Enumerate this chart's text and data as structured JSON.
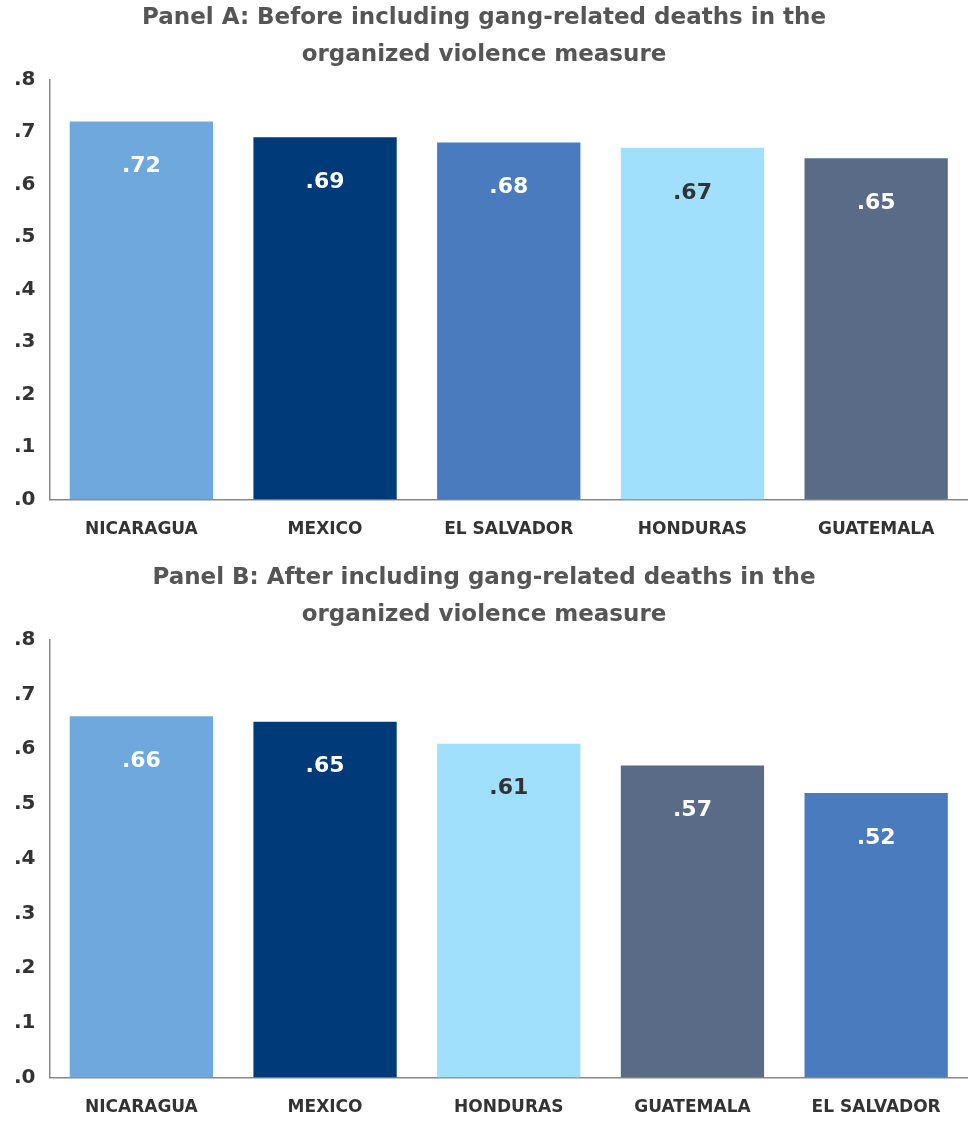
{
  "chart_data": [
    {
      "type": "bar",
      "title": "Panel A: Before including gang-related deaths in the organized violence measure",
      "categories": [
        "NICARAGUA",
        "MEXICO",
        "EL SALVADOR",
        "HONDURAS",
        "GUATEMALA"
      ],
      "values": [
        0.72,
        0.69,
        0.68,
        0.67,
        0.65
      ],
      "colors": [
        "#6fa8dc",
        "#003a78",
        "#4a7bbf",
        "#a0e0fc",
        "#596b86"
      ],
      "value_labels": [
        ".72",
        ".69",
        ".68",
        ".67",
        ".65"
      ],
      "ylim": [
        0,
        0.8
      ],
      "yticks": [
        {
          "value": 0,
          "label": ".0"
        },
        {
          "value": 0.1,
          "label": ".1"
        },
        {
          "value": 0.2,
          "label": ".2"
        },
        {
          "value": 0.3,
          "label": ".3"
        },
        {
          "value": 0.4,
          "label": ".4"
        },
        {
          "value": 0.5,
          "label": ".5"
        },
        {
          "value": 0.6,
          "label": ".6"
        },
        {
          "value": 0.7,
          "label": ".7"
        },
        {
          "value": 0.8,
          "label": ".8"
        }
      ],
      "grid": false,
      "legend": false
    },
    {
      "type": "bar",
      "title": "Panel B: After including gang-related deaths in the organized violence measure",
      "categories": [
        "NICARAGUA",
        "MEXICO",
        "HONDURAS",
        "GUATEMALA",
        "EL SALVADOR"
      ],
      "values": [
        0.66,
        0.65,
        0.61,
        0.57,
        0.52
      ],
      "colors": [
        "#6fa8dc",
        "#003a78",
        "#a0e0fc",
        "#596b86",
        "#4a7bbf"
      ],
      "value_labels": [
        ".66",
        ".65",
        ".61",
        ".57",
        ".52"
      ],
      "ylim": [
        0,
        0.8
      ],
      "yticks": [
        {
          "value": 0,
          "label": ".0"
        },
        {
          "value": 0.1,
          "label": ".1"
        },
        {
          "value": 0.2,
          "label": ".2"
        },
        {
          "value": 0.3,
          "label": ".3"
        },
        {
          "value": 0.4,
          "label": ".4"
        },
        {
          "value": 0.5,
          "label": ".5"
        },
        {
          "value": 0.6,
          "label": ".6"
        },
        {
          "value": 0.7,
          "label": ".7"
        },
        {
          "value": 0.8,
          "label": ".8"
        }
      ],
      "grid": false,
      "legend": false
    }
  ]
}
